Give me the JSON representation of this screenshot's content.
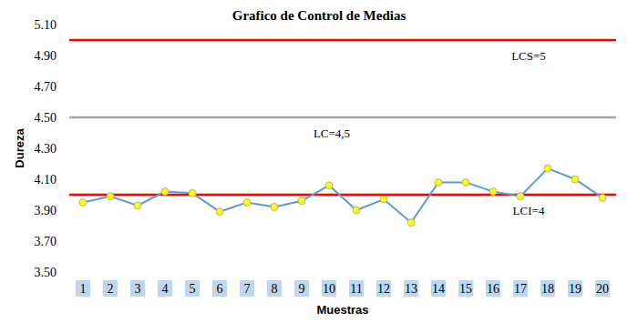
{
  "chart_data": {
    "type": "line",
    "title": "Grafico de Control de Medias",
    "x_label": "Muestras",
    "y_label": "Dureza",
    "categories": [
      "1",
      "2",
      "3",
      "4",
      "5",
      "6",
      "7",
      "8",
      "9",
      "10",
      "11",
      "12",
      "13",
      "14",
      "15",
      "16",
      "17",
      "18",
      "19",
      "20"
    ],
    "series": [
      {
        "color": "#5b9bd5",
        "marker": "circle",
        "values": [
          3.95,
          3.99,
          3.93,
          4.02,
          4.01,
          3.89,
          3.95,
          3.92,
          3.96,
          4.06,
          3.9,
          3.97,
          3.82,
          4.08,
          4.08,
          4.02,
          3.99,
          4.17,
          4.1,
          3.98
        ]
      }
    ],
    "reference_lines": [
      {
        "label": "LCS=5",
        "value": 5,
        "color": "#ff0000"
      },
      {
        "label": "LC=4,5",
        "value": 4.5,
        "color": "#a6a6a6"
      },
      {
        "label": "LCI=4",
        "value": 4,
        "color": "#ff0000"
      }
    ],
    "ylim": [
      3.5,
      5.1
    ],
    "yticks": [
      {
        "value": 3.5,
        "label": "3.50"
      },
      {
        "value": 3.7,
        "label": "3.70"
      },
      {
        "value": 3.9,
        "label": "3.90"
      },
      {
        "value": 4.1,
        "label": "4.10"
      },
      {
        "value": 4.3,
        "label": "4.30"
      },
      {
        "value": 4.5,
        "label": "4.50"
      },
      {
        "value": 4.7,
        "label": "4.70"
      },
      {
        "value": 4.9,
        "label": "4.90"
      },
      {
        "value": 5.1,
        "label": "5.10"
      }
    ],
    "grid": false
  }
}
